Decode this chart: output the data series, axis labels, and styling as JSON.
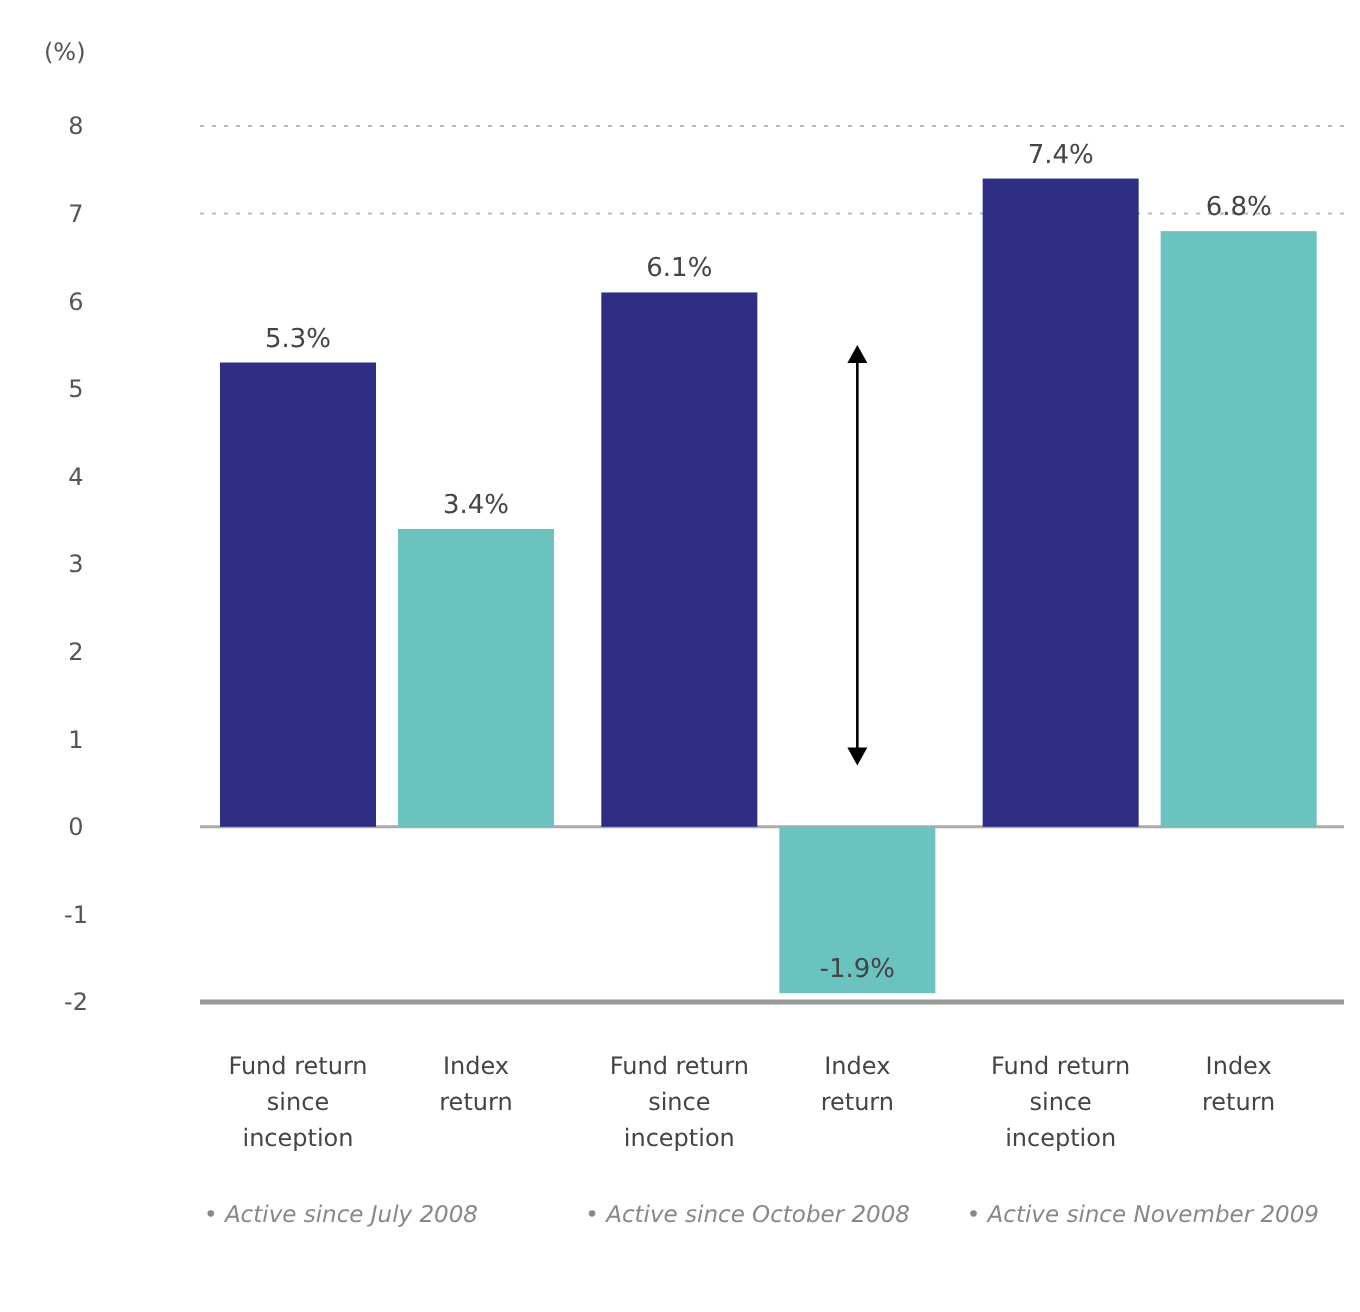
{
  "chart_data": {
    "type": "bar",
    "ylabel": "(%)",
    "categories": [
      "Fund return since inception",
      "Index return",
      "Fund return since inception",
      "Index return",
      "Fund return since inception",
      "Index return"
    ],
    "values": [
      5.3,
      3.4,
      6.1,
      -1.9,
      7.4,
      6.8
    ],
    "colors": [
      "#2f2e85",
      "#6bc3bf",
      "#2f2e85",
      "#6bc3bf",
      "#2f2e85",
      "#6bc3bf"
    ],
    "value_labels": [
      "5.3%",
      "3.4%",
      "6.1%",
      "-1.9%",
      "7.4%",
      "6.8%"
    ],
    "ylim": [
      -2,
      8
    ],
    "yticks": [
      -2,
      -1,
      0,
      1,
      2,
      3,
      4,
      5,
      6,
      7,
      8
    ],
    "ref_lines": [
      {
        "axis": "y",
        "value": 7,
        "line_style": "dotted",
        "color": "#bbbbbb"
      },
      {
        "axis": "y",
        "value": 8,
        "line_style": "dotted",
        "color": "#bbbbbb"
      },
      {
        "axis": "y",
        "value": 0,
        "line_style": "solid",
        "color": "#aaaaaa"
      }
    ],
    "annotations": [
      "• Active since July 2008",
      "• Active since October 2008",
      "• Active since November 2009"
    ]
  }
}
